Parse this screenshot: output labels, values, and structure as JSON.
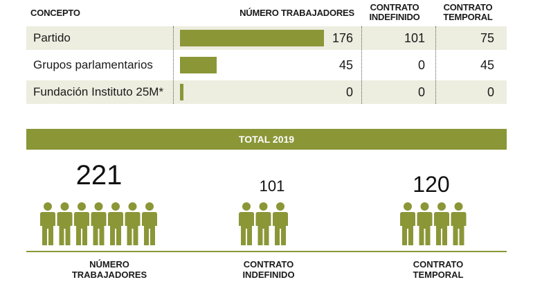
{
  "table": {
    "headers": {
      "concepto": "CONCEPTO",
      "numero": "NÚMERO TRABAJADORES",
      "indefinido": "CONTRATO\nINDEFINIDO",
      "temporal": "CONTRATO\nTEMPORAL"
    },
    "rows": [
      {
        "concepto": "Partido",
        "numero": "176",
        "indefinido": "101",
        "temporal": "75",
        "bar_value": 176
      },
      {
        "concepto": "Grupos parlamentarios",
        "numero": "45",
        "indefinido": "0",
        "temporal": "45",
        "bar_value": 45
      },
      {
        "concepto": "Fundación Instituto 25M*",
        "numero": "0",
        "indefinido": "0",
        "temporal": "0",
        "bar_value": 0
      }
    ],
    "bar_max": 176,
    "bar_color": "#8b9637",
    "shade_color": "#edede0"
  },
  "total": {
    "title": "TOTAL 2019",
    "items": [
      {
        "value": "221",
        "icons": 7,
        "caption": "NÚMERO\nTRABAJADORES"
      },
      {
        "value": "101",
        "icons": 3,
        "caption": "CONTRATO\nINDEFINIDO"
      },
      {
        "value": "120",
        "icons": 4,
        "caption": "CONTRATO\nTEMPORAL"
      }
    ],
    "icon_name": "person-icon"
  }
}
